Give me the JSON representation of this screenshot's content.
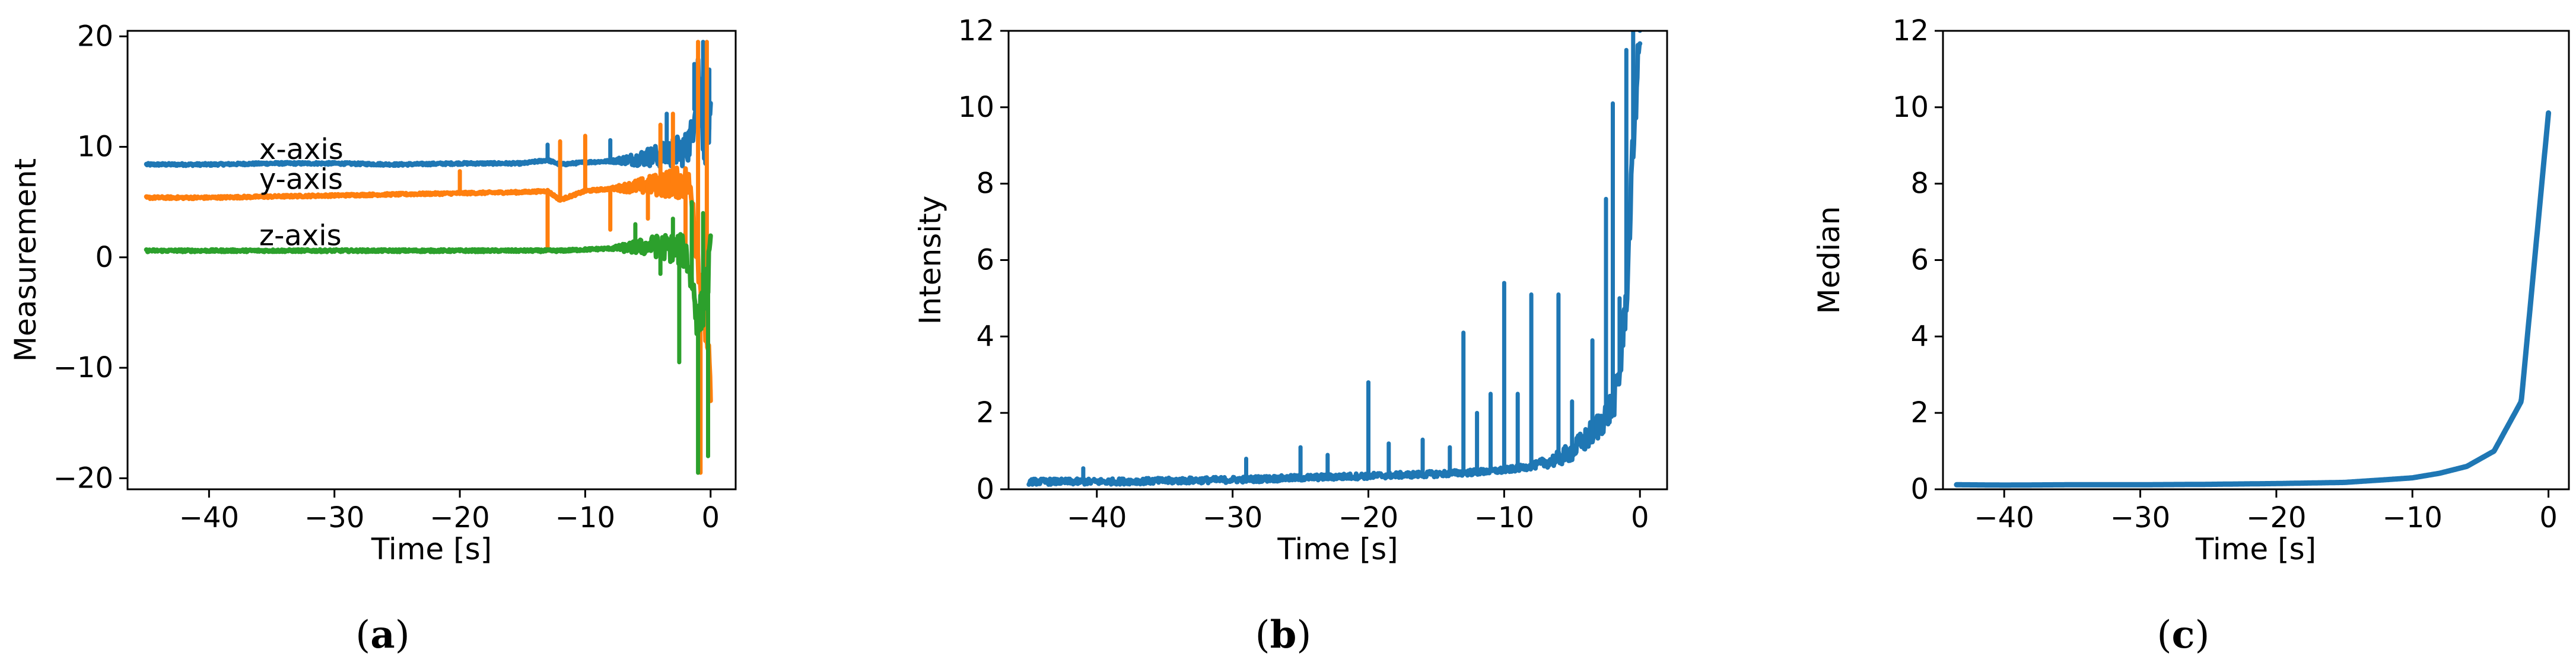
{
  "colors": {
    "blue": "#1f77b4",
    "orange": "#ff7f0e",
    "green": "#2ca02c"
  },
  "chart_data": [
    {
      "type": "line",
      "caption": "(a)",
      "xlabel": "Time [s]",
      "ylabel": "Measurement",
      "xlim": [
        -46.5,
        2.0
      ],
      "ylim": [
        -21,
        20.5
      ],
      "xticks": [
        -40,
        -30,
        -20,
        -10,
        0
      ],
      "xtick_labels": [
        "−40",
        "−30",
        "−20",
        "−10",
        "0"
      ],
      "yticks": [
        -20,
        -10,
        0,
        10,
        20
      ],
      "ytick_labels": [
        "−20",
        "−10",
        "0",
        "10",
        "20"
      ],
      "annotations": [
        {
          "text": "x-axis",
          "x": -36,
          "y": 8.9
        },
        {
          "text": "y-axis",
          "x": -36,
          "y": 6.2
        },
        {
          "text": "z-axis",
          "x": -36,
          "y": 1.1
        }
      ],
      "series": [
        {
          "color": "blue",
          "x": [
            -45,
            -40,
            -35,
            -30,
            -25,
            -20,
            -15,
            -13,
            -12,
            -10,
            -8,
            -6,
            -5,
            -4,
            -3,
            -2,
            -1.5,
            -1,
            -0.5,
            0
          ],
          "y": [
            8.4,
            8.4,
            8.5,
            8.5,
            8.4,
            8.5,
            8.5,
            8.8,
            8.4,
            8.6,
            8.7,
            8.9,
            9.1,
            9.2,
            9.5,
            9.8,
            11,
            17,
            10,
            12
          ],
          "spikes": [
            [
              -13,
              10.2
            ],
            [
              -8,
              10.6
            ],
            [
              -3.5,
              13
            ],
            [
              -1.3,
              17.5
            ],
            [
              -0.6,
              19.5
            ],
            [
              -0.1,
              17
            ]
          ]
        },
        {
          "color": "orange",
          "x": [
            -45,
            -40,
            -35,
            -30,
            -25,
            -20,
            -15,
            -13,
            -12,
            -10,
            -8,
            -6,
            -5,
            -4,
            -3,
            -2,
            -1.5,
            -1,
            -0.5,
            0
          ],
          "y": [
            5.4,
            5.4,
            5.5,
            5.6,
            5.7,
            5.8,
            5.9,
            6.0,
            5.2,
            6.0,
            6.2,
            6.4,
            6.5,
            6.6,
            6.7,
            6.8,
            6.0,
            0,
            -5,
            -12
          ],
          "spikes": [
            [
              -20,
              7.8
            ],
            [
              -13,
              0.6
            ],
            [
              -12,
              10.5
            ],
            [
              -10,
              11
            ],
            [
              -8,
              2.5
            ],
            [
              -5,
              3.5
            ],
            [
              -4,
              12
            ],
            [
              -3,
              13
            ],
            [
              -2,
              1
            ],
            [
              -1,
              19.5
            ],
            [
              -0.8,
              -19.5
            ],
            [
              -0.3,
              19.5
            ],
            [
              0,
              -13
            ]
          ]
        },
        {
          "color": "green",
          "x": [
            -45,
            -40,
            -35,
            -30,
            -25,
            -20,
            -15,
            -13,
            -12,
            -10,
            -8,
            -6,
            -5,
            -4,
            -3,
            -2,
            -1.5,
            -1,
            -0.5,
            0
          ],
          "y": [
            0.6,
            0.6,
            0.6,
            0.6,
            0.6,
            0.6,
            0.6,
            0.6,
            0.6,
            0.7,
            0.8,
            0.9,
            1.0,
            1.0,
            0.8,
            0.5,
            -2,
            -6,
            -4,
            0
          ],
          "spikes": [
            [
              -6,
              3
            ],
            [
              -4,
              -1.5
            ],
            [
              -3,
              3.5
            ],
            [
              -2.5,
              -9.5
            ],
            [
              -1.5,
              5
            ],
            [
              -1,
              -19.5
            ],
            [
              -0.6,
              4
            ],
            [
              -0.2,
              -18
            ]
          ]
        }
      ]
    },
    {
      "type": "line",
      "caption": "(b)",
      "xlabel": "Time [s]",
      "ylabel": "Intensity",
      "xlim": [
        -46.5,
        2.0
      ],
      "ylim": [
        0,
        12
      ],
      "xticks": [
        -40,
        -30,
        -20,
        -10,
        0
      ],
      "xtick_labels": [
        "−40",
        "−30",
        "−20",
        "−10",
        "0"
      ],
      "yticks": [
        0,
        2,
        4,
        6,
        8,
        10,
        12
      ],
      "ytick_labels": [
        "0",
        "2",
        "4",
        "6",
        "8",
        "10",
        "12"
      ],
      "series": [
        {
          "color": "blue",
          "x": [
            -45,
            -40,
            -35,
            -30,
            -25,
            -20,
            -15,
            -12,
            -10,
            -8,
            -6,
            -5,
            -4,
            -3,
            -2,
            -1.5,
            -1,
            -0.5,
            0
          ],
          "y": [
            0.2,
            0.2,
            0.22,
            0.25,
            0.3,
            0.35,
            0.4,
            0.45,
            0.5,
            0.6,
            0.8,
            1.0,
            1.3,
            1.7,
            2.2,
            3.0,
            5.0,
            9.0,
            12
          ],
          "spikes": [
            [
              -41,
              0.55
            ],
            [
              -29,
              0.8
            ],
            [
              -25,
              1.1
            ],
            [
              -23,
              0.9
            ],
            [
              -20,
              2.8
            ],
            [
              -18.5,
              1.2
            ],
            [
              -16,
              1.3
            ],
            [
              -14,
              1.1
            ],
            [
              -13,
              4.1
            ],
            [
              -12,
              2.0
            ],
            [
              -11,
              2.5
            ],
            [
              -10,
              5.4
            ],
            [
              -9,
              2.5
            ],
            [
              -8,
              5.1
            ],
            [
              -6,
              5.1
            ],
            [
              -5,
              2.3
            ],
            [
              -3.5,
              3.9
            ],
            [
              -2.5,
              7.6
            ],
            [
              -2,
              10.1
            ],
            [
              -1.5,
              5
            ],
            [
              -1,
              11.5
            ],
            [
              -0.5,
              12
            ],
            [
              0,
              12
            ]
          ]
        }
      ]
    },
    {
      "type": "line",
      "caption": "(c)",
      "xlabel": "Time [s]",
      "ylabel": "Median",
      "xlim": [
        -44.5,
        1.5
      ],
      "ylim": [
        0,
        12
      ],
      "xticks": [
        -40,
        -30,
        -20,
        -10,
        0
      ],
      "xtick_labels": [
        "−40",
        "−30",
        "−20",
        "−10",
        "0"
      ],
      "yticks": [
        0,
        2,
        4,
        6,
        8,
        10,
        12
      ],
      "ytick_labels": [
        "0",
        "2",
        "4",
        "6",
        "8",
        "10",
        "12"
      ],
      "series": [
        {
          "color": "blue",
          "x": [
            -43.5,
            -40,
            -35,
            -30,
            -25,
            -20,
            -15,
            -12,
            -10,
            -8,
            -6,
            -4,
            -2,
            0
          ],
          "y": [
            0.12,
            0.11,
            0.12,
            0.12,
            0.13,
            0.15,
            0.18,
            0.25,
            0.3,
            0.42,
            0.6,
            1.0,
            2.3,
            9.85
          ]
        }
      ]
    }
  ]
}
